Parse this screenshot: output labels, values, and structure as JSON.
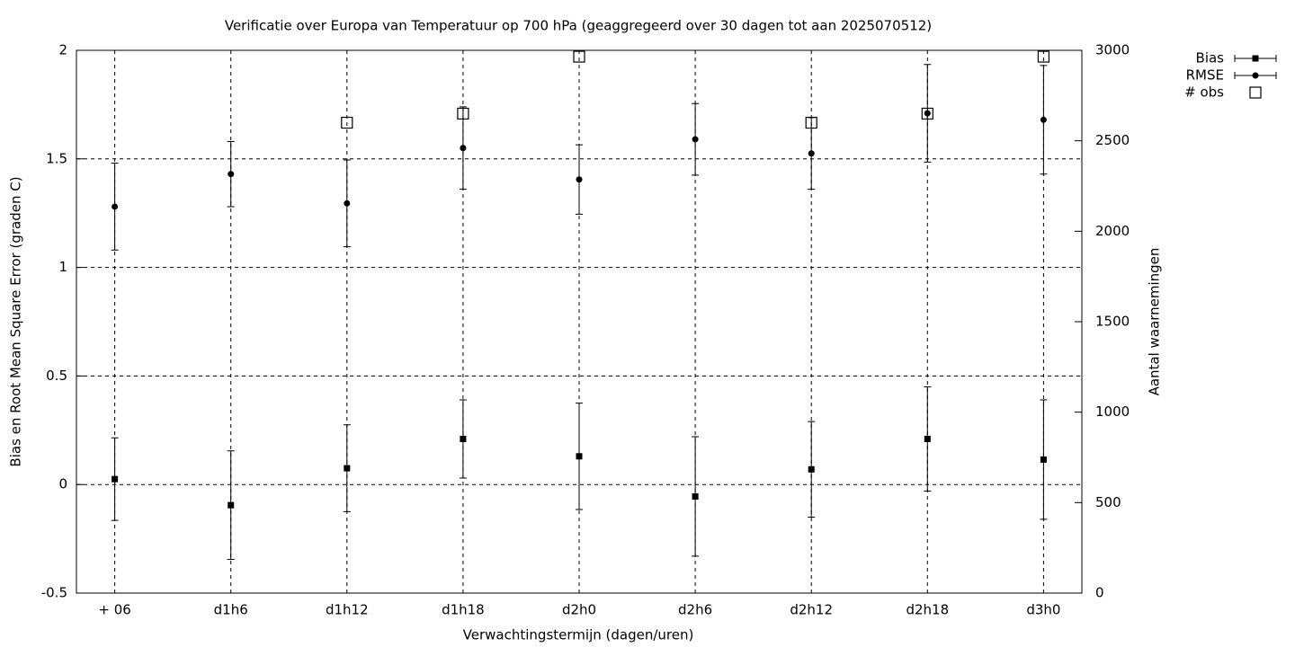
{
  "chart_data": {
    "type": "errorbar",
    "title": "Verificatie over Europa van Temperatuur op 700 hPa (geaggregeerd over 30 dagen tot aan 2025070512)",
    "x_label": "Verwachtingstermijn (dagen/uren)",
    "y_label": "Bias en Root Mean Square Error (graden C)",
    "y2_label": "Aantal waarnemingen",
    "categories": [
      "+ 06",
      "d1h6",
      "d1h12",
      "d1h18",
      "d2h0",
      "d2h6",
      "d2h12",
      "d2h18",
      "d3h0"
    ],
    "ylim": [
      -0.5,
      2
    ],
    "yticks": [
      -0.5,
      0,
      0.5,
      1,
      1.5,
      2
    ],
    "y2lim": [
      0,
      3000
    ],
    "y2ticks": [
      0,
      500,
      1000,
      1500,
      2000,
      2500,
      3000
    ],
    "grid": true,
    "series": [
      {
        "name": "Bias",
        "color": "#000000",
        "marker": "square",
        "values": [
          0.025,
          -0.095,
          0.075,
          0.21,
          0.13,
          -0.055,
          0.07,
          0.21,
          0.115
        ],
        "errors": [
          0.19,
          0.25,
          0.2,
          0.18,
          0.245,
          0.275,
          0.22,
          0.24,
          0.275
        ]
      },
      {
        "name": "RMSE",
        "color": "#000000",
        "marker": "circle",
        "values": [
          1.28,
          1.43,
          1.295,
          1.55,
          1.405,
          1.59,
          1.525,
          1.71,
          1.68
        ],
        "errors": [
          0.2,
          0.15,
          0.2,
          0.19,
          0.16,
          0.165,
          0.165,
          0.225,
          0.25
        ]
      },
      {
        "name": "# obs",
        "color": "#000000",
        "marker": "open-square",
        "axis": "y2",
        "values": [
          null,
          null,
          2600,
          2650,
          2965,
          null,
          2600,
          2650,
          2965
        ]
      }
    ]
  }
}
